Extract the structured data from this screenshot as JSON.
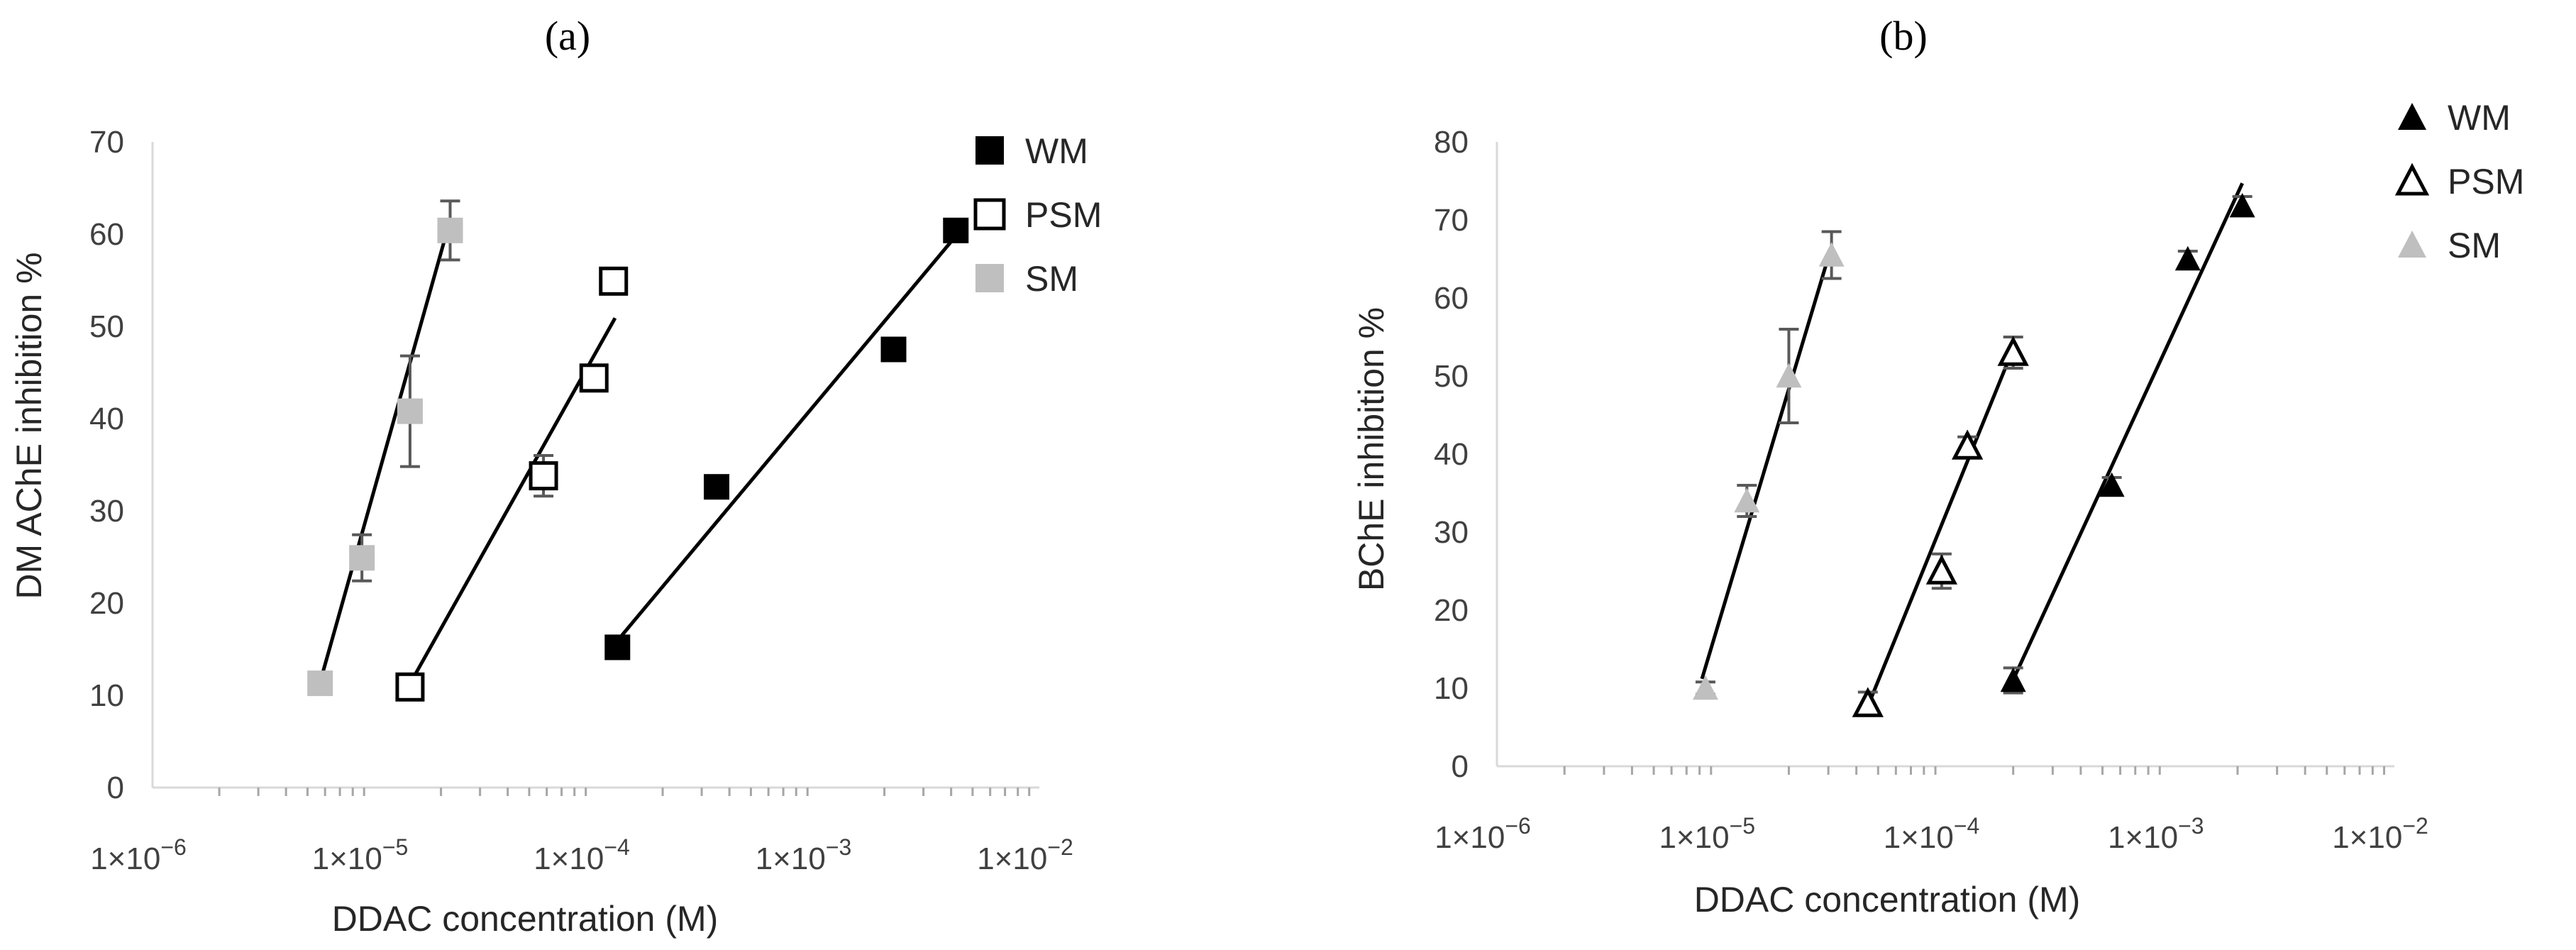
{
  "chart_data": [
    {
      "panel_label": "(a)",
      "type": "scatter",
      "x_scale": "log",
      "xlabel": "DDAC concentration (M)",
      "ylabel": "DM AChE inhibition %",
      "xlim": [
        1e-06,
        0.01
      ],
      "ylim": [
        0,
        70
      ],
      "y_ticks": [
        "0",
        "10",
        "20",
        "30",
        "40",
        "50",
        "60",
        "70"
      ],
      "x_ticks": [
        {
          "base": "1×10",
          "exp": "−6"
        },
        {
          "base": "1×10",
          "exp": "−5"
        },
        {
          "base": "1×10",
          "exp": "−4"
        },
        {
          "base": "1×10",
          "exp": "−3"
        },
        {
          "base": "1×10",
          "exp": "−2"
        }
      ],
      "grid": false,
      "legend_position": "top-right",
      "series": [
        {
          "name": "WM",
          "marker": "square-filled",
          "color": "#000000",
          "points": [
            {
              "x": 0.000125,
              "y": 15.2,
              "err": 0.6
            },
            {
              "x": 0.00035,
              "y": 32.6,
              "err": 0.8
            },
            {
              "x": 0.0022,
              "y": 47.5,
              "err": 0.8
            },
            {
              "x": 0.0042,
              "y": 60.4,
              "err": 0.7
            }
          ],
          "fit": {
            "x": [
              0.000118,
              0.0042
            ],
            "y": [
              15.2,
              59.8
            ]
          }
        },
        {
          "name": "PSM",
          "marker": "square-open",
          "color": "#000000",
          "points": [
            {
              "x": 1.45e-05,
              "y": 10.9,
              "err": 0.6
            },
            {
              "x": 5.8e-05,
              "y": 33.8,
              "err": 2.2
            },
            {
              "x": 9.8e-05,
              "y": 44.4,
              "err": 1.2
            },
            {
              "x": 0.00012,
              "y": 54.9,
              "err": 1.2
            }
          ],
          "fit": {
            "x": [
              1.4e-05,
              0.000122
            ],
            "y": [
              10.6,
              50.9
            ]
          }
        },
        {
          "name": "SM",
          "marker": "square-filled",
          "color": "#bfbfbf",
          "points": [
            {
              "x": 5.7e-06,
              "y": 11.3,
              "err": 0.6
            },
            {
              "x": 8.8e-06,
              "y": 24.9,
              "err": 2.5
            },
            {
              "x": 1.45e-05,
              "y": 40.8,
              "err": 6.0
            },
            {
              "x": 2.2e-05,
              "y": 60.4,
              "err": 3.2
            }
          ],
          "fit": {
            "x": [
              5.5e-06,
              2.1e-05
            ],
            "y": [
              10.1,
              59.8
            ]
          }
        }
      ]
    },
    {
      "panel_label": "(b)",
      "type": "scatter",
      "x_scale": "log",
      "xlabel": "DDAC concentration (M)",
      "ylabel": "BChE inhibition %",
      "xlim": [
        1e-06,
        0.01
      ],
      "ylim": [
        0,
        80
      ],
      "y_ticks": [
        "0",
        "10",
        "20",
        "30",
        "40",
        "50",
        "60",
        "70",
        "80"
      ],
      "x_ticks": [
        {
          "base": "1×10",
          "exp": "−6"
        },
        {
          "base": "1×10",
          "exp": "−5"
        },
        {
          "base": "1×10",
          "exp": "−4"
        },
        {
          "base": "1×10",
          "exp": "−3"
        },
        {
          "base": "1×10",
          "exp": "−2"
        }
      ],
      "grid": false,
      "legend_position": "top-right",
      "series": [
        {
          "name": "WM",
          "marker": "triangle-filled",
          "color": "#000000",
          "points": [
            {
              "x": 0.0002,
              "y": 11.0,
              "err": 1.6
            },
            {
              "x": 0.00055,
              "y": 36.0,
              "err": 1.0
            },
            {
              "x": 0.0012,
              "y": 65.0,
              "err": 1.0
            },
            {
              "x": 0.0021,
              "y": 71.8,
              "err": 1.2
            }
          ],
          "fit": {
            "x": [
              0.00019,
              0.0021
            ],
            "y": [
              9.7,
              74.7
            ]
          }
        },
        {
          "name": "PSM",
          "marker": "triangle-open",
          "color": "#000000",
          "points": [
            {
              "x": 4.5e-05,
              "y": 8.0,
              "err": 1.5
            },
            {
              "x": 9.6e-05,
              "y": 25.0,
              "err": 2.2
            },
            {
              "x": 0.000125,
              "y": 41.0,
              "err": 1.2
            },
            {
              "x": 0.0002,
              "y": 53.0,
              "err": 2.0
            }
          ],
          "fit": {
            "x": [
              4.4e-05,
              0.0002
            ],
            "y": [
              7.0,
              53.5
            ]
          }
        },
        {
          "name": "SM",
          "marker": "triangle-filled",
          "color": "#bfbfbf",
          "points": [
            {
              "x": 8.5e-06,
              "y": 10.0,
              "err": 0.8
            },
            {
              "x": 1.3e-05,
              "y": 34.0,
              "err": 2.0
            },
            {
              "x": 2e-05,
              "y": 50.0,
              "err": 6.0
            },
            {
              "x": 3.1e-05,
              "y": 65.5,
              "err": 3.0
            }
          ],
          "fit": {
            "x": [
              8.2e-06,
              3.1e-05
            ],
            "y": [
              11.2,
              66.6
            ]
          }
        }
      ]
    }
  ]
}
